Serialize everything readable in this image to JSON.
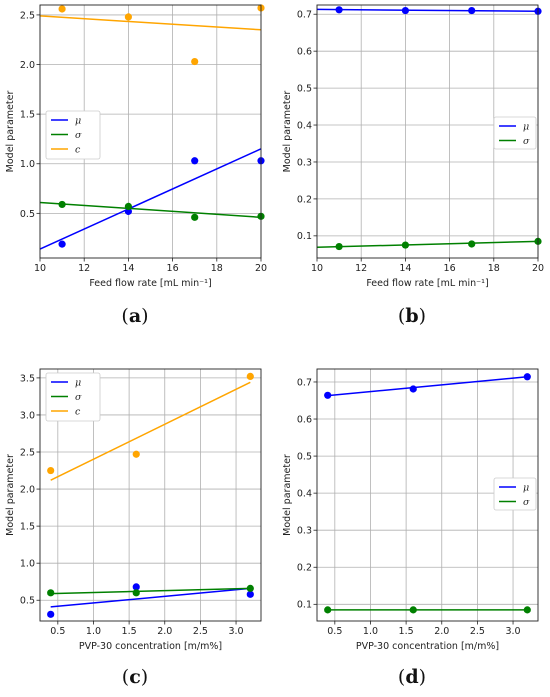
{
  "chart_data": [
    {
      "panel_label": "a",
      "type": "scatter",
      "xlabel": "Feed flow rate [mL min⁻¹]",
      "ylabel": "Model parameter",
      "xlim": [
        10,
        20
      ],
      "ylim": [
        0.05,
        2.6
      ],
      "xticks": [
        10,
        12,
        14,
        16,
        18,
        20
      ],
      "xtick_labels": [
        "10",
        "12",
        "14",
        "16",
        "18",
        "20"
      ],
      "yticks": [
        0.5,
        1.0,
        1.5,
        2.0,
        2.5
      ],
      "ytick_labels": [
        "0.5",
        "1.0",
        "1.5",
        "2.0",
        "2.5"
      ],
      "grid": true,
      "legend": "center-left",
      "series": [
        {
          "name": "μ",
          "color": "#0000ff",
          "x": [
            11,
            14,
            17,
            20
          ],
          "y": [
            0.19,
            0.52,
            1.03,
            1.03
          ],
          "fit": [
            [
              10,
              0.14
            ],
            [
              20,
              1.15
            ]
          ]
        },
        {
          "name": "σ",
          "color": "#008000",
          "x": [
            11,
            14,
            17,
            20
          ],
          "y": [
            0.59,
            0.57,
            0.46,
            0.47
          ],
          "fit": [
            [
              10,
              0.61
            ],
            [
              20,
              0.46
            ]
          ]
        },
        {
          "name": "c",
          "color": "#ffa500",
          "x": [
            11,
            14,
            17,
            20
          ],
          "y": [
            2.56,
            2.48,
            2.03,
            2.57
          ],
          "fit": [
            [
              10,
              2.49
            ],
            [
              20,
              2.35
            ]
          ]
        }
      ]
    },
    {
      "panel_label": "b",
      "type": "scatter",
      "xlabel": "Feed flow rate [mL min⁻¹]",
      "ylabel": "Model parameter",
      "xlim": [
        10,
        20
      ],
      "ylim": [
        0.04,
        0.725
      ],
      "xticks": [
        10,
        12,
        14,
        16,
        18,
        20
      ],
      "xtick_labels": [
        "10",
        "12",
        "14",
        "16",
        "18",
        "20"
      ],
      "yticks": [
        0.1,
        0.2,
        0.3,
        0.4,
        0.5,
        0.6,
        0.7
      ],
      "ytick_labels": [
        "0.1",
        "0.2",
        "0.3",
        "0.4",
        "0.5",
        "0.6",
        "0.7"
      ],
      "grid": true,
      "legend": "center-right",
      "series": [
        {
          "name": "μ",
          "color": "#0000ff",
          "x": [
            11,
            14,
            17,
            20
          ],
          "y": [
            0.712,
            0.71,
            0.71,
            0.708
          ],
          "fit": [
            [
              10,
              0.713
            ],
            [
              20,
              0.708
            ]
          ]
        },
        {
          "name": "σ",
          "color": "#008000",
          "x": [
            11,
            14,
            17,
            20
          ],
          "y": [
            0.071,
            0.075,
            0.078,
            0.085
          ],
          "fit": [
            [
              10,
              0.069
            ],
            [
              20,
              0.085
            ]
          ]
        }
      ]
    },
    {
      "panel_label": "c",
      "type": "scatter",
      "xlabel": "PVP-30 concentration [m/m%]",
      "ylabel": "Model parameter",
      "xlim": [
        0.25,
        3.35
      ],
      "ylim": [
        0.22,
        3.62
      ],
      "xticks": [
        0.5,
        1.0,
        1.5,
        2.0,
        2.5,
        3.0
      ],
      "xtick_labels": [
        "0.5",
        "1.0",
        "1.5",
        "2.0",
        "2.5",
        "3.0"
      ],
      "yticks": [
        0.5,
        1.0,
        1.5,
        2.0,
        2.5,
        3.0,
        3.5
      ],
      "ytick_labels": [
        "0.5",
        "1.0",
        "1.5",
        "2.0",
        "2.5",
        "3.0",
        "3.5"
      ],
      "grid": true,
      "legend": "top-left",
      "series": [
        {
          "name": "μ",
          "color": "#0000ff",
          "x": [
            0.4,
            1.6,
            3.2
          ],
          "y": [
            0.31,
            0.68,
            0.58
          ],
          "fit": [
            [
              0.4,
              0.41
            ],
            [
              3.2,
              0.66
            ]
          ]
        },
        {
          "name": "σ",
          "color": "#008000",
          "x": [
            0.4,
            1.6,
            3.2
          ],
          "y": [
            0.6,
            0.6,
            0.66
          ],
          "fit": [
            [
              0.4,
              0.59
            ],
            [
              3.2,
              0.66
            ]
          ]
        },
        {
          "name": "c",
          "color": "#ffa500",
          "x": [
            0.4,
            1.6,
            3.2
          ],
          "y": [
            2.25,
            2.47,
            3.52
          ],
          "fit": [
            [
              0.4,
              2.12
            ],
            [
              3.2,
              3.44
            ]
          ]
        }
      ]
    },
    {
      "panel_label": "d",
      "type": "scatter",
      "xlabel": "PVP-30 concentration [m/m%]",
      "ylabel": "Model parameter",
      "xlim": [
        0.25,
        3.35
      ],
      "ylim": [
        0.055,
        0.735
      ],
      "xticks": [
        0.5,
        1.0,
        1.5,
        2.0,
        2.5,
        3.0
      ],
      "xtick_labels": [
        "0.5",
        "1.0",
        "1.5",
        "2.0",
        "2.5",
        "3.0"
      ],
      "yticks": [
        0.1,
        0.2,
        0.3,
        0.4,
        0.5,
        0.6,
        0.7
      ],
      "ytick_labels": [
        "0.1",
        "0.2",
        "0.3",
        "0.4",
        "0.5",
        "0.6",
        "0.7"
      ],
      "grid": true,
      "legend": "center-right",
      "series": [
        {
          "name": "μ",
          "color": "#0000ff",
          "x": [
            0.4,
            1.6,
            3.2
          ],
          "y": [
            0.664,
            0.681,
            0.714
          ],
          "fit": [
            [
              0.4,
              0.663
            ],
            [
              3.2,
              0.714
            ]
          ]
        },
        {
          "name": "σ",
          "color": "#008000",
          "x": [
            0.4,
            1.6,
            3.2
          ],
          "y": [
            0.085,
            0.085,
            0.085
          ],
          "fit": [
            [
              0.4,
              0.085
            ],
            [
              3.2,
              0.085
            ]
          ]
        }
      ]
    }
  ]
}
